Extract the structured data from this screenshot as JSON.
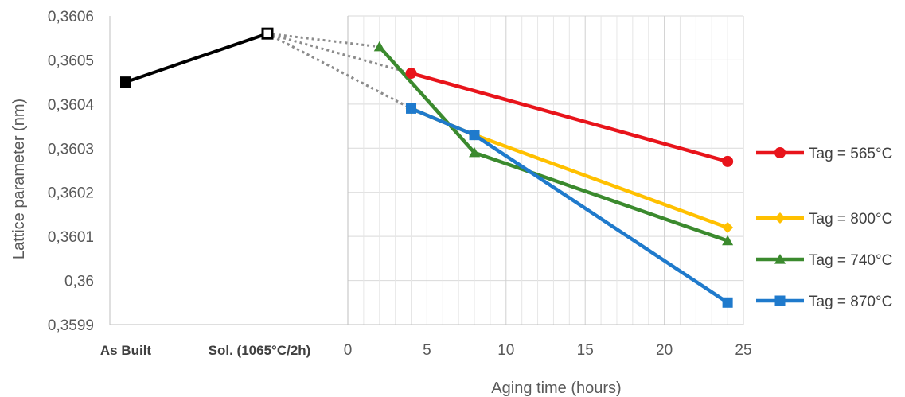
{
  "chart_data": {
    "type": "line",
    "ylabel": "Lattice parameter (nm)",
    "xlabel": "Aging time (hours)",
    "ylim": [
      0.3599,
      0.3606
    ],
    "yticks": [
      "0,3599",
      "0,36",
      "0,3601",
      "0,3602",
      "0,3603",
      "0,3604",
      "0,3605",
      "0,3606"
    ],
    "xlim": [
      0,
      25
    ],
    "xticks": [
      "0",
      "5",
      "10",
      "15",
      "20",
      "25"
    ],
    "grid": true,
    "legend_position": "right",
    "categorical_part": {
      "categories": [
        "As Built",
        "Sol. (1065°C/2h)"
      ],
      "values": [
        0.36045,
        0.36056
      ],
      "color": "#000000"
    },
    "series": [
      {
        "name": "Tag = 565°C",
        "color": "#E8141B",
        "marker": "circle",
        "x": [
          4,
          24
        ],
        "y": [
          0.36047,
          0.36027
        ]
      },
      {
        "name": "Tag = 800°C",
        "color": "#FFC000",
        "marker": "diamond",
        "x": [
          4,
          8,
          24
        ],
        "y": [
          0.36039,
          0.36033,
          0.36012
        ]
      },
      {
        "name": "Tag = 740°C",
        "color": "#3B8A2E",
        "marker": "triangle",
        "x": [
          2,
          8,
          24
        ],
        "y": [
          0.36053,
          0.36029,
          0.36009
        ]
      },
      {
        "name": "Tag = 870°C",
        "color": "#1F7ACC",
        "marker": "square",
        "x": [
          4,
          8,
          24
        ],
        "y": [
          0.36039,
          0.36033,
          0.35995
        ]
      }
    ]
  }
}
